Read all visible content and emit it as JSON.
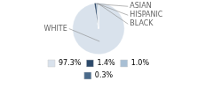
{
  "chart_data": {
    "type": "pie",
    "categories": [
      "WHITE",
      "ASIAN",
      "HISPANIC",
      "BLACK"
    ],
    "values": [
      97.3,
      1.4,
      1.0,
      0.3
    ],
    "value_labels": [
      "97.3%",
      "1.4%",
      "1.0%",
      "0.3%"
    ],
    "colors": [
      "#d9e2ec",
      "#2d4a6b",
      "#a8bfd4",
      "#4a6a8a"
    ],
    "legend": "bottom"
  }
}
